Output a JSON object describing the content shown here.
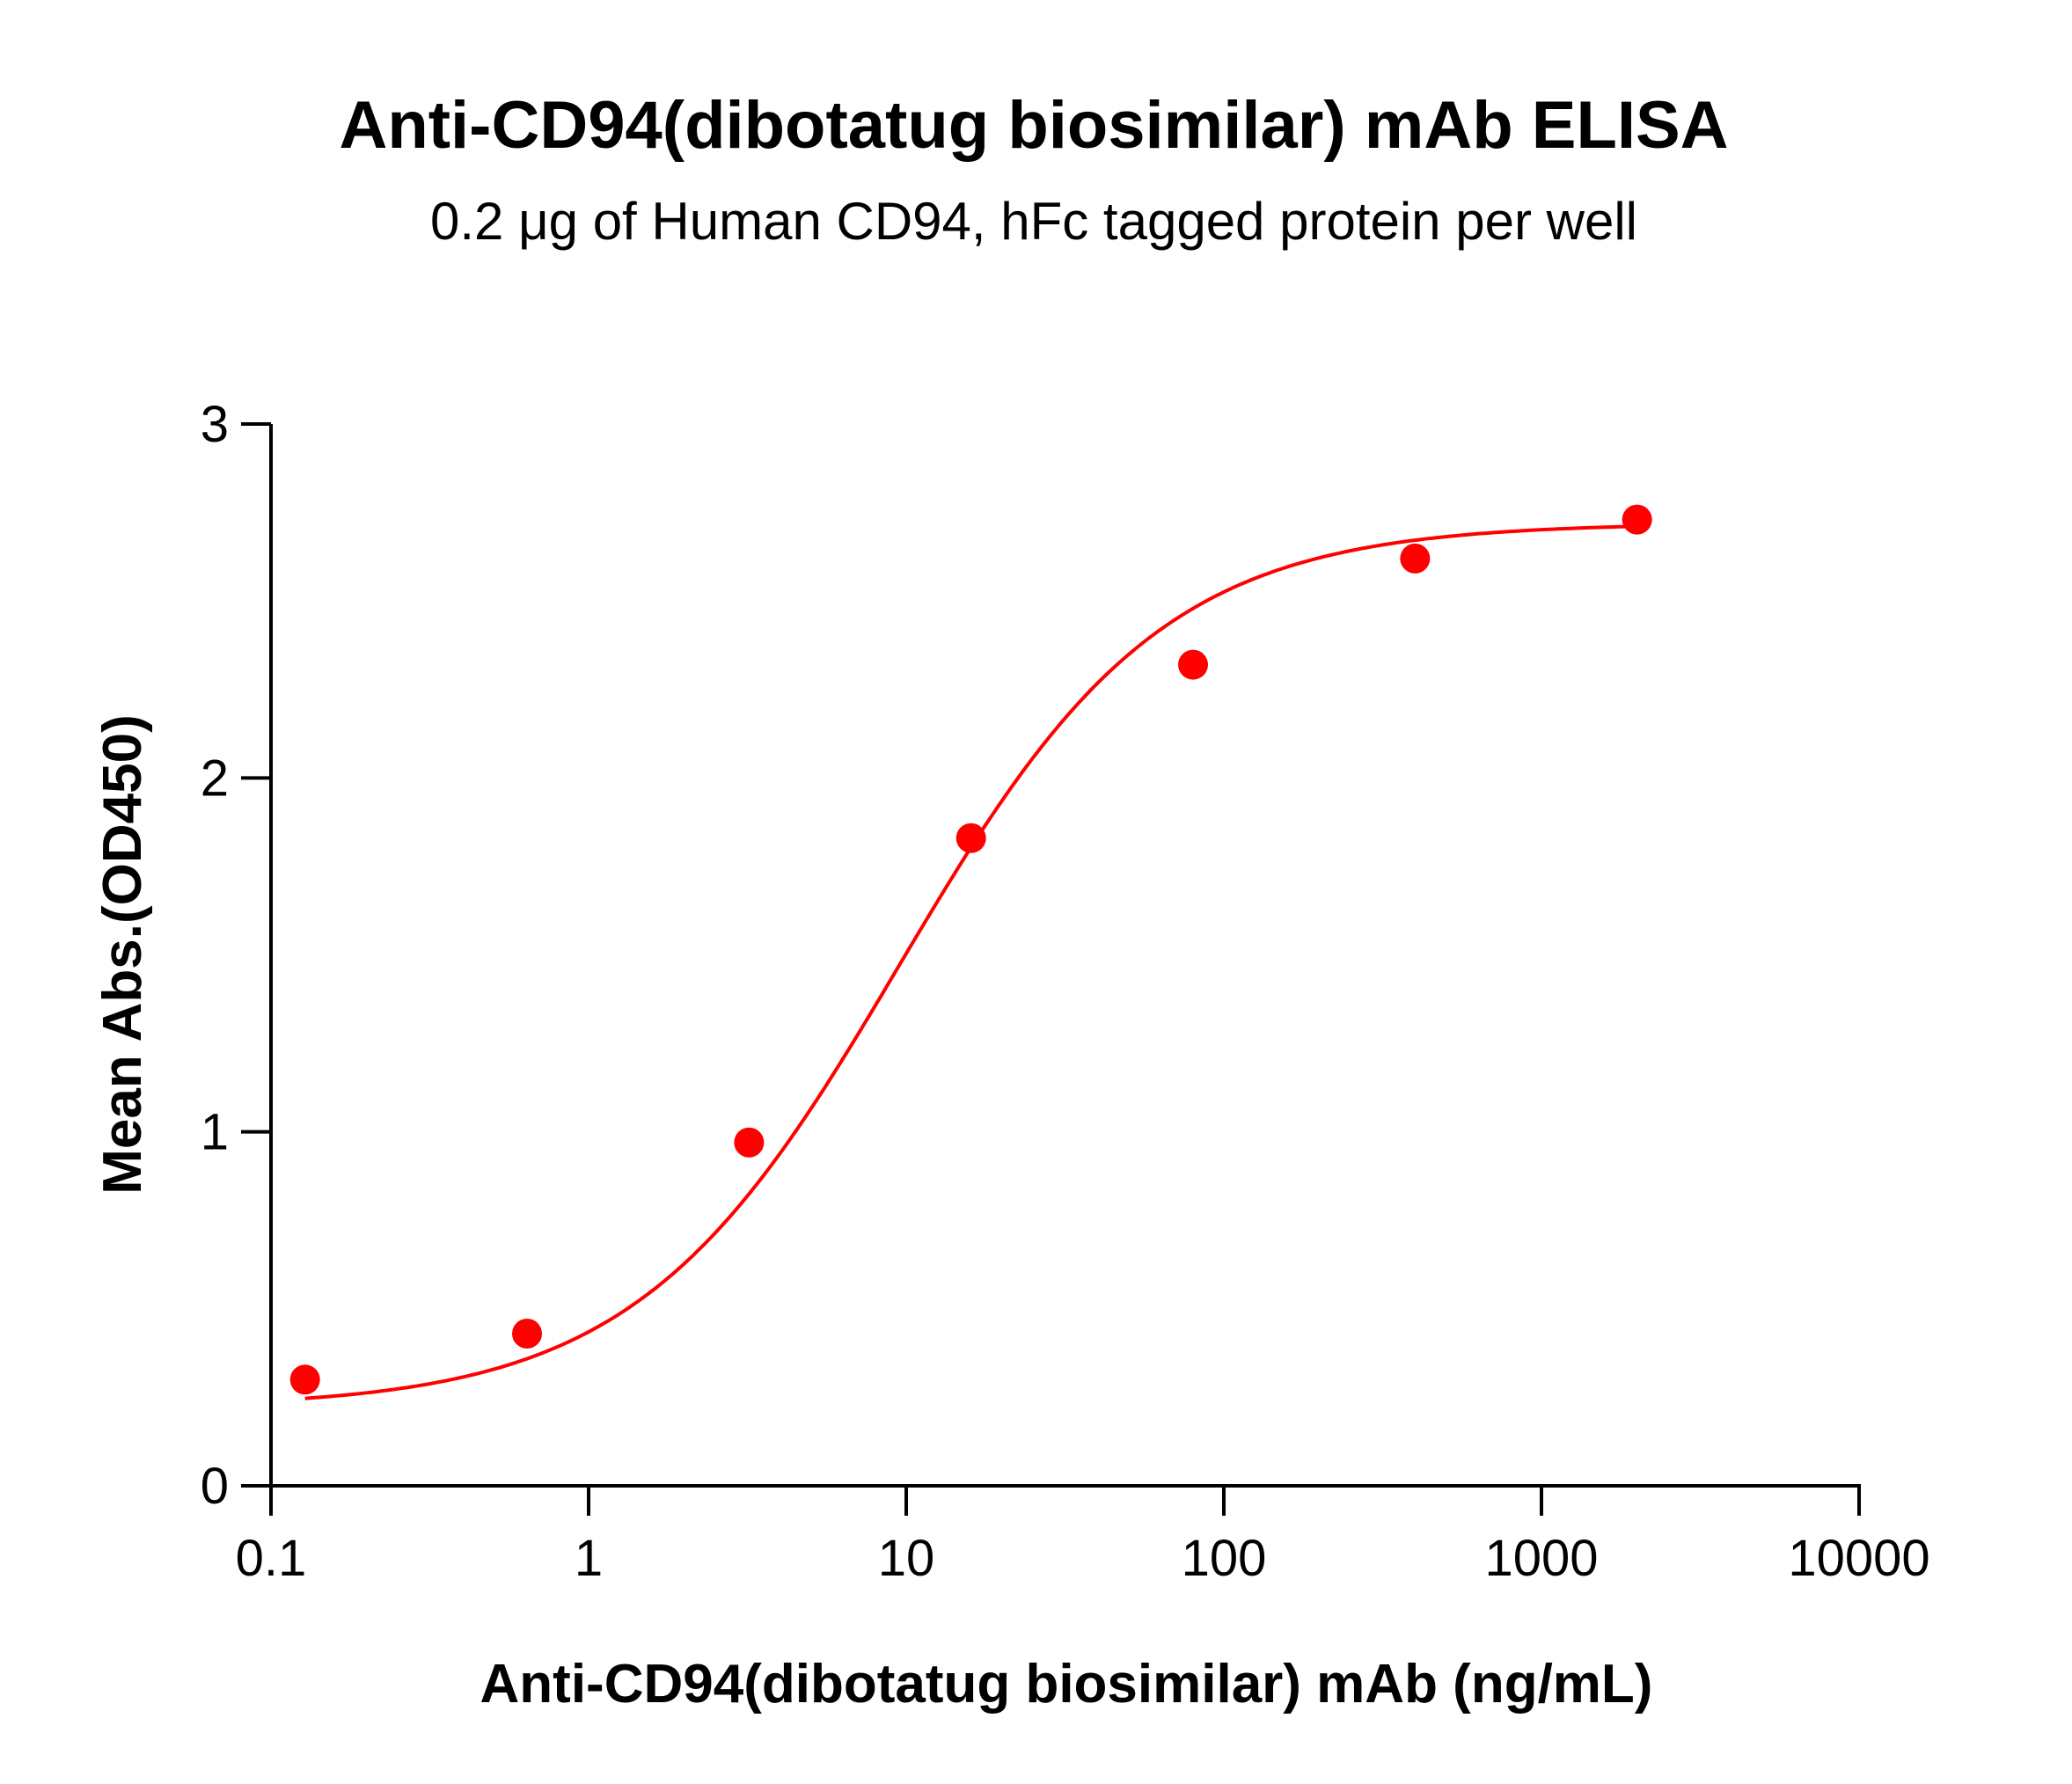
{
  "chart_data": {
    "type": "scatter",
    "title": "Anti-CD94(dibotatug biosimilar) mAb ELISA",
    "subtitle": "0.2 μg of Human CD94, hFc tagged protein per well",
    "xlabel": "Anti-CD94(dibotatug biosimilar) mAb (ng/mL)",
    "ylabel": "Mean Abs.(OD450)",
    "x_scale": "log",
    "xlim": [
      0.1,
      10000
    ],
    "ylim": [
      0,
      3
    ],
    "x_ticks": [
      "0.1",
      "1",
      "10",
      "100",
      "1000",
      "10000"
    ],
    "y_ticks": [
      "0",
      "1",
      "2",
      "3"
    ],
    "grid": false,
    "legend": "none",
    "color": "#ff0000",
    "fit": "4-parameter logistic curve",
    "series": [
      {
        "x": [
          0.128,
          0.64,
          3.2,
          16,
          80,
          400,
          2000
        ],
        "y": [
          0.3,
          0.43,
          0.97,
          1.83,
          2.32,
          2.62,
          2.73
        ]
      }
    ]
  }
}
